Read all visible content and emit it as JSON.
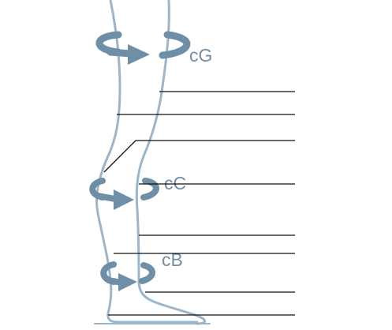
{
  "colors": {
    "leg_outline": "#9bb6ca",
    "arrow": "#6f8fa6",
    "leader_line": "#111111",
    "label_text": "#6f8fa6"
  },
  "labels": {
    "thigh": "cG",
    "calf": "cC",
    "ankle": "cB"
  }
}
